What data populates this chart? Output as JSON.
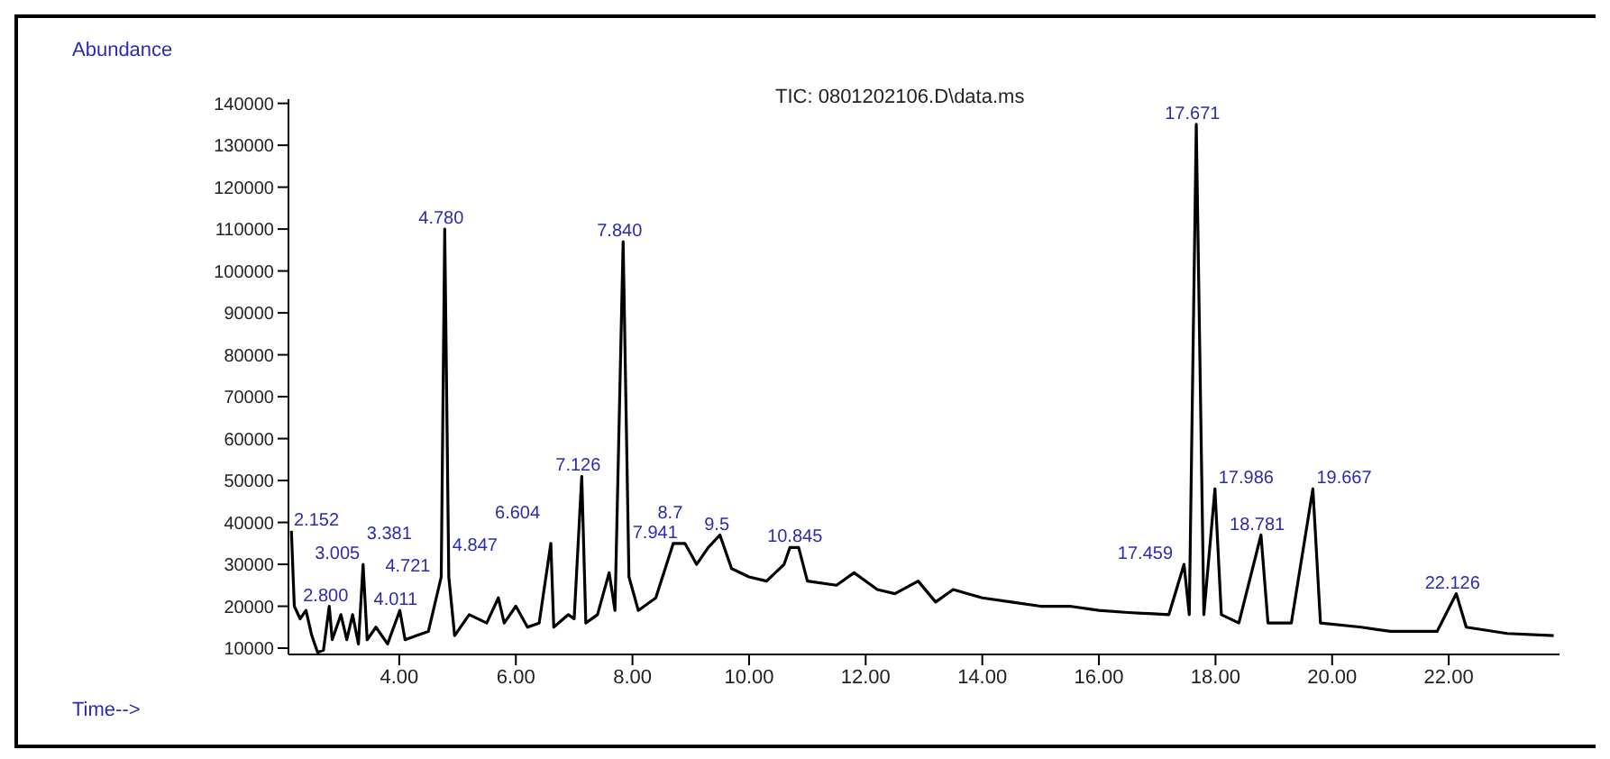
{
  "chart_data": {
    "type": "line",
    "title": "TIC: 0801202106.D\\data.ms",
    "xlabel": "Time-->",
    "ylabel": "Abundance",
    "x": [
      2.15,
      2.2,
      2.3,
      2.4,
      2.5,
      2.6,
      2.7,
      2.8,
      2.85,
      3.0,
      3.1,
      3.2,
      3.3,
      3.38,
      3.45,
      3.6,
      3.8,
      4.01,
      4.1,
      4.3,
      4.5,
      4.72,
      4.78,
      4.85,
      4.95,
      5.2,
      5.5,
      5.7,
      5.8,
      6.0,
      6.2,
      6.4,
      6.6,
      6.65,
      6.9,
      7.0,
      7.13,
      7.2,
      7.4,
      7.6,
      7.7,
      7.84,
      7.94,
      8.1,
      8.4,
      8.7,
      8.9,
      9.1,
      9.3,
      9.5,
      9.7,
      10.0,
      10.3,
      10.6,
      10.7,
      10.85,
      11.0,
      11.5,
      11.8,
      12.2,
      12.5,
      12.9,
      13.2,
      13.5,
      14.0,
      14.5,
      15.0,
      15.5,
      16.0,
      16.5,
      17.2,
      17.46,
      17.55,
      17.67,
      17.8,
      17.99,
      18.1,
      18.4,
      18.78,
      18.9,
      19.3,
      19.67,
      19.8,
      20.5,
      21.0,
      21.8,
      22.13,
      22.3,
      23.0,
      23.8
    ],
    "series": [
      {
        "color": "#000000",
        "values": [
          38000,
          20000,
          17000,
          19000,
          13000,
          9000,
          9500,
          20000,
          12000,
          18000,
          12000,
          18000,
          11000,
          30000,
          12000,
          15000,
          11000,
          19000,
          12000,
          13000,
          14000,
          27000,
          110000,
          27000,
          13000,
          18000,
          16000,
          22000,
          16000,
          20000,
          15000,
          16000,
          35000,
          15000,
          18000,
          17000,
          51000,
          16000,
          18000,
          28000,
          19000,
          107000,
          27000,
          19000,
          22000,
          35000,
          35000,
          30000,
          34000,
          37000,
          29000,
          27000,
          26000,
          30000,
          34000,
          34000,
          26000,
          25000,
          28000,
          24000,
          23000,
          26000,
          21000,
          24000,
          22000,
          21000,
          20000,
          20000,
          19000,
          18500,
          18000,
          30000,
          18000,
          135000,
          18000,
          48000,
          18000,
          16000,
          37000,
          16000,
          16000,
          48000,
          16000,
          15000,
          14000,
          14000,
          23000,
          15000,
          13500,
          13000
        ]
      }
    ],
    "xlim": [
      2.1,
      23.9
    ],
    "xticks": [
      {
        "value": 4,
        "label": "4.00"
      },
      {
        "value": 6,
        "label": "6.00"
      },
      {
        "value": 8,
        "label": "8.00"
      },
      {
        "value": 10,
        "label": "10.00"
      },
      {
        "value": 12,
        "label": "12.00"
      },
      {
        "value": 14,
        "label": "14.00"
      },
      {
        "value": 16,
        "label": "16.00"
      },
      {
        "value": 18,
        "label": "18.00"
      },
      {
        "value": 20,
        "label": "20.00"
      },
      {
        "value": 22,
        "label": "22.00"
      }
    ],
    "ylim": [
      8500,
      141000
    ],
    "yticks": [
      10000,
      20000,
      30000,
      40000,
      50000,
      60000,
      70000,
      80000,
      90000,
      100000,
      110000,
      120000,
      130000,
      140000
    ],
    "grid": false,
    "legend": false,
    "marker": "none",
    "line_style": "solid",
    "annotations": [
      {
        "text": "2.152",
        "x": 2.15,
        "y": 38000
      },
      {
        "text": "2.800",
        "x": 2.8,
        "y": 20000
      },
      {
        "text": "3.005",
        "x": 3.0,
        "y": 18000
      },
      {
        "text": "3.381",
        "x": 3.38,
        "y": 30000
      },
      {
        "text": "4.011",
        "x": 4.01,
        "y": 19000
      },
      {
        "text": "4.721",
        "x": 4.72,
        "y": 27000
      },
      {
        "text": "4.847",
        "x": 4.85,
        "y": 32000
      },
      {
        "text": "4.780",
        "x": 4.78,
        "y": 110000
      },
      {
        "text": "6.604",
        "x": 6.6,
        "y": 35000
      },
      {
        "text": "7.126",
        "x": 7.13,
        "y": 51000
      },
      {
        "text": "7.840",
        "x": 7.84,
        "y": 107000
      },
      {
        "text": "7.941",
        "x": 7.94,
        "y": 27000
      },
      {
        "text": "8.7",
        "x": 8.7,
        "y": 35000
      },
      {
        "text": "9.5",
        "x": 9.5,
        "y": 37000
      },
      {
        "text": "10.845",
        "x": 10.85,
        "y": 34000
      },
      {
        "text": "17.459",
        "x": 17.46,
        "y": 30000
      },
      {
        "text": "17.671",
        "x": 17.67,
        "y": 135000
      },
      {
        "text": "17.986",
        "x": 17.99,
        "y": 48000
      },
      {
        "text": "18.781",
        "x": 18.78,
        "y": 37000
      },
      {
        "text": "19.667",
        "x": 19.67,
        "y": 48000
      },
      {
        "text": "22.126",
        "x": 22.13,
        "y": 23000
      }
    ]
  }
}
